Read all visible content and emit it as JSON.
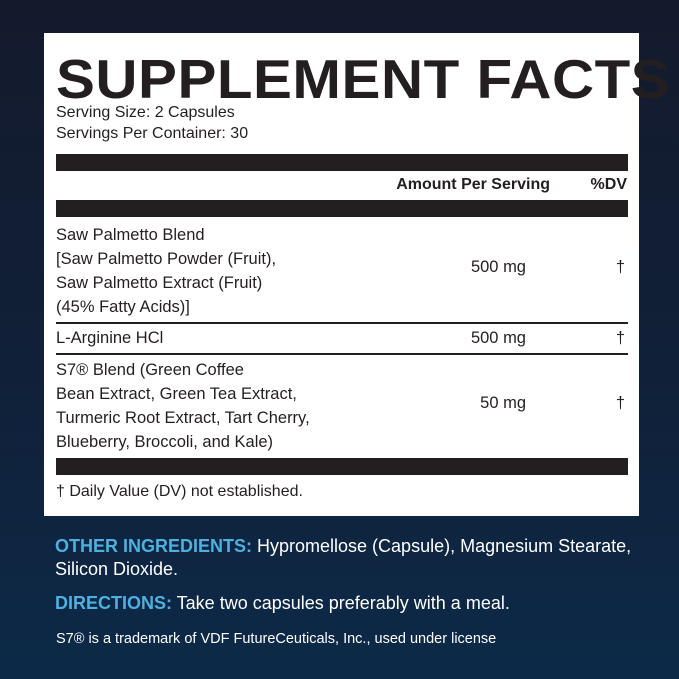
{
  "label": {
    "title": "SUPPLEMENT FACTS",
    "serving_size": "Serving Size: 2 Capsules",
    "servings_per_container": "Servings Per Container: 30",
    "header_amount": "Amount Per Serving",
    "header_dv": "%DV",
    "rows": [
      {
        "lines": [
          "Saw Palmetto Blend",
          "[Saw Palmetto Powder (Fruit),",
          "Saw Palmetto Extract (Fruit)",
          "(45% Fatty Acids)]"
        ],
        "amount": "500 mg",
        "dv": "†"
      },
      {
        "lines": [
          "L-Arginine HCl"
        ],
        "amount": "500 mg",
        "dv": "†"
      },
      {
        "lines": [
          "S7® Blend (Green Coffee",
          "Bean Extract, Green Tea Extract,",
          "Turmeric Root Extract, Tart Cherry,",
          "Blueberry, Broccoli, and Kale)"
        ],
        "amount": "50 mg",
        "dv": "†"
      }
    ],
    "footnote": "† Daily Value (DV) not established."
  },
  "other_ingredients": {
    "label": "OTHER INGREDIENTS:",
    "text": " Hypromellose (Capsule), Magnesium Stearate, Silicon Dioxide."
  },
  "directions": {
    "label": "DIRECTIONS:",
    "text": " Take two capsules preferably with a meal."
  },
  "trademark": "S7® is a trademark of VDF FutureCeuticals, Inc., used under license",
  "colors": {
    "accent": "#4fb0e0",
    "background": "#10213a",
    "ink": "#231f20"
  }
}
